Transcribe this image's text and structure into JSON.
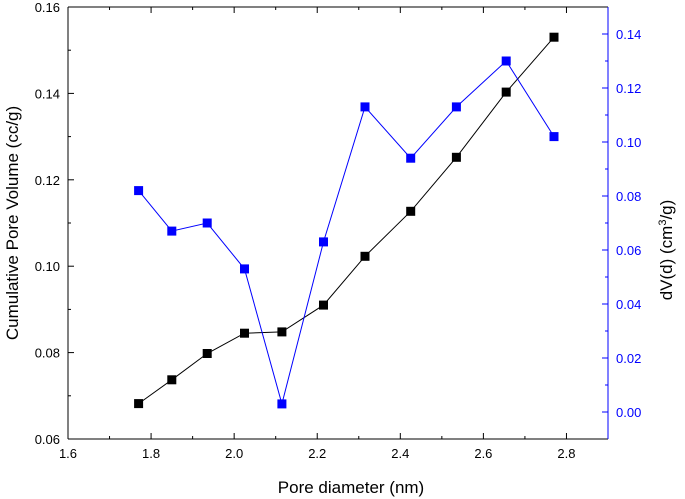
{
  "chart_data": {
    "type": "line",
    "xlabel": "Pore diameter (nm)",
    "ylabel_left": "Cumulative Pore Volume (cc/g)",
    "ylabel_right_parts": [
      "dV(d) (cm",
      "3",
      "/g)"
    ],
    "xlim": [
      1.6,
      2.9
    ],
    "ylim_left": [
      0.06,
      0.16
    ],
    "ylim_right": [
      -0.01,
      0.15
    ],
    "x_ticks": [
      "1.6",
      "1.8",
      "2.0",
      "2.2",
      "2.4",
      "2.6",
      "2.8"
    ],
    "y_left_ticks": [
      "0.06",
      "0.08",
      "0.10",
      "0.12",
      "0.14",
      "0.16"
    ],
    "y_right_ticks": [
      "0.00",
      "0.02",
      "0.04",
      "0.06",
      "0.08",
      "0.10",
      "0.12",
      "0.14"
    ],
    "grid": false,
    "legend": "none",
    "series": [
      {
        "axis": "left",
        "color": "#000000",
        "marker": "square",
        "x": [
          1.77,
          1.85,
          1.935,
          2.025,
          2.115,
          2.215,
          2.315,
          2.425,
          2.535,
          2.655,
          2.77
        ],
        "y": [
          0.0682,
          0.0737,
          0.0798,
          0.0845,
          0.0848,
          0.091,
          0.1023,
          0.1127,
          0.1252,
          0.1403,
          0.153
        ]
      },
      {
        "axis": "right",
        "color": "#0000FF",
        "marker": "square",
        "x": [
          1.77,
          1.85,
          1.935,
          2.025,
          2.115,
          2.215,
          2.315,
          2.425,
          2.535,
          2.655,
          2.77
        ],
        "y": [
          0.082,
          0.067,
          0.07,
          0.053,
          0.003,
          0.063,
          0.113,
          0.094,
          0.113,
          0.13,
          0.102
        ]
      }
    ]
  }
}
